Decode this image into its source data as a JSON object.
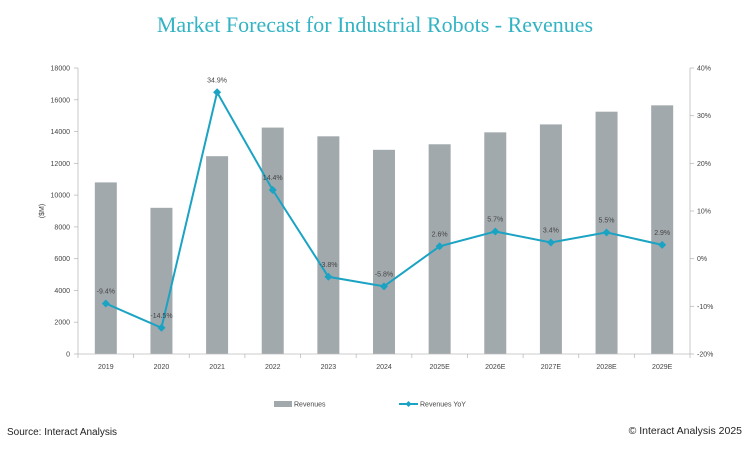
{
  "chart_data": {
    "type": "bar",
    "title": "Market Forecast for Industrial Robots - Revenues",
    "ylabel": "($M)",
    "categories": [
      "2019",
      "2020",
      "2021",
      "2022",
      "2023",
      "2024",
      "2025E",
      "2026E",
      "2027E",
      "2028E",
      "2029E"
    ],
    "series": [
      {
        "name": "Revenues",
        "type": "bar",
        "axis": "left",
        "values": [
          10800,
          9200,
          12450,
          14250,
          13700,
          12850,
          13200,
          13950,
          14450,
          15250,
          15650
        ]
      },
      {
        "name": "Revenues YoY",
        "type": "line",
        "axis": "right",
        "values": [
          -9.4,
          -14.5,
          34.9,
          14.4,
          -3.8,
          -5.8,
          2.6,
          5.7,
          3.4,
          5.5,
          2.9
        ],
        "labels": [
          "-9.4%",
          "-14.5%",
          "34.9%",
          "14.4%",
          "-3.8%",
          "-5.8%",
          "2.6%",
          "5.7%",
          "3.4%",
          "5.5%",
          "2.9%"
        ]
      }
    ],
    "ylim": [
      0,
      18000
    ],
    "yticks": [
      "0",
      "2000",
      "4000",
      "6000",
      "8000",
      "10000",
      "12000",
      "14000",
      "16000",
      "18000"
    ],
    "y2lim": [
      -20,
      40
    ],
    "y2ticks": [
      "-20%",
      "-10%",
      "0%",
      "10%",
      "20%",
      "30%",
      "40%"
    ],
    "grid": false,
    "legend_position": "bottom",
    "colors": {
      "bars": "#a2a9ad",
      "line": "#1aa3c3",
      "title": "#33b3c3"
    }
  },
  "footer": {
    "source": "Source: Interact Analysis",
    "copyright": "© Interact Analysis 2025"
  }
}
